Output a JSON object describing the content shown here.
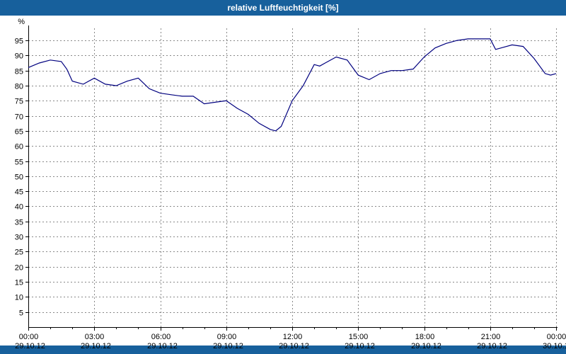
{
  "title_bar": {
    "title": "relative Luftfeuchtigkeit [%]",
    "bg_color": "#17609C",
    "text_color": "#FFFFFF"
  },
  "chart_data": {
    "type": "line",
    "title": "relative Luftfeuchtigkeit [%]",
    "ylabel": "%",
    "ylim": [
      0,
      99
    ],
    "ytick_step": 5,
    "yticks": [
      5,
      10,
      15,
      20,
      25,
      30,
      35,
      40,
      45,
      50,
      55,
      60,
      65,
      70,
      75,
      80,
      85,
      90,
      95
    ],
    "x_unit": "hours",
    "xlim": [
      0,
      24
    ],
    "xticks": [
      {
        "hour": 0,
        "time": "00:00",
        "date": "29.10.12"
      },
      {
        "hour": 3,
        "time": "03:00",
        "date": "29.10.12"
      },
      {
        "hour": 6,
        "time": "06:00",
        "date": "29.10.12"
      },
      {
        "hour": 9,
        "time": "09:00",
        "date": "29.10.12"
      },
      {
        "hour": 12,
        "time": "12:00",
        "date": "29.10.12"
      },
      {
        "hour": 15,
        "time": "15:00",
        "date": "29.10.12"
      },
      {
        "hour": 18,
        "time": "18:00",
        "date": "29.10.12"
      },
      {
        "hour": 21,
        "time": "21:00",
        "date": "29.10.12"
      },
      {
        "hour": 24,
        "time": "00:00",
        "date": "30.10.12"
      }
    ],
    "grid": "dashed",
    "grid_color": "#888888",
    "axis_color": "#000000",
    "line_color": "#00007F",
    "series": [
      {
        "name": "relative Luftfeuchtigkeit",
        "x": [
          0,
          0.5,
          1,
          1.5,
          1.75,
          2,
          2.5,
          3,
          3.5,
          4,
          4.5,
          5,
          5.5,
          6,
          6.5,
          7,
          7.5,
          8,
          8.5,
          9,
          9.5,
          10,
          10.5,
          11,
          11.25,
          11.5,
          12,
          12.5,
          13,
          13.25,
          13.5,
          14,
          14.5,
          15,
          15.5,
          16,
          16.5,
          17,
          17.5,
          18,
          18.5,
          19,
          19.5,
          20,
          20.5,
          21,
          21.25,
          21.5,
          22,
          22.5,
          23,
          23.5,
          23.75,
          24
        ],
        "values": [
          86,
          87.5,
          88.5,
          88,
          85.5,
          81.5,
          80.5,
          82.5,
          80.5,
          80,
          81.5,
          82.5,
          79,
          77.5,
          77,
          76.5,
          76.5,
          74,
          74.5,
          75,
          72.5,
          70.5,
          67.5,
          65.5,
          65,
          66.5,
          75,
          80,
          87,
          86.5,
          87.5,
          89.5,
          88.5,
          83.5,
          82,
          84,
          85,
          85,
          85.5,
          89.5,
          92.5,
          94,
          95,
          95.5,
          95.5,
          95.5,
          92,
          92.5,
          93.5,
          93,
          89,
          84,
          83.5,
          84
        ]
      }
    ]
  }
}
